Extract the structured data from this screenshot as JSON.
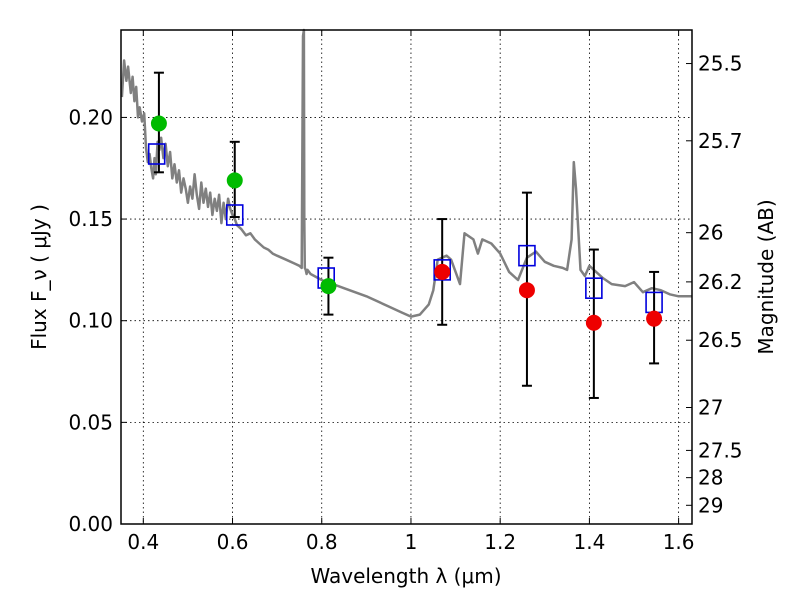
{
  "chart_data": {
    "type": "scatter",
    "xlabel": "Wavelength  λ (μm)",
    "ylabel": "Flux  F_ν  ( μJy )",
    "ylabel_right": "Magnitude (AB)",
    "xlim": [
      0.35,
      1.63
    ],
    "ylim": [
      0.0,
      0.243
    ],
    "grid": true,
    "x_ticks": [
      0.4,
      0.6,
      0.8,
      1.0,
      1.2,
      1.4,
      1.6
    ],
    "x_tick_labels": [
      "0.4",
      "0.6",
      "0.8",
      "1",
      "1.2",
      "1.4",
      "1.6"
    ],
    "y_ticks": [
      0.0,
      0.05,
      0.1,
      0.15,
      0.2
    ],
    "y_tick_labels": [
      "0.00",
      "0.05",
      "0.10",
      "0.15",
      "0.20"
    ],
    "right_ticks": [
      {
        "label": "25.5",
        "flux": 0.2265
      },
      {
        "label": "25.7",
        "flux": 0.1885
      },
      {
        "label": "26",
        "flux": 0.1433
      },
      {
        "label": "26.2",
        "flux": 0.1191
      },
      {
        "label": "26.5",
        "flux": 0.0904
      },
      {
        "label": "27",
        "flux": 0.0573
      },
      {
        "label": "27.5",
        "flux": 0.0362
      },
      {
        "label": "28",
        "flux": 0.0228
      },
      {
        "label": "29",
        "flux": 0.0092
      }
    ],
    "series": [
      {
        "kind": "model-spectrum",
        "color": "#808080",
        "x": [
          0.352,
          0.357,
          0.362,
          0.366,
          0.372,
          0.376,
          0.38,
          0.384,
          0.388,
          0.392,
          0.397,
          0.402,
          0.406,
          0.41,
          0.414,
          0.418,
          0.422,
          0.425,
          0.428,
          0.432,
          0.436,
          0.44,
          0.445,
          0.45,
          0.455,
          0.46,
          0.465,
          0.47,
          0.475,
          0.48,
          0.485,
          0.49,
          0.495,
          0.5,
          0.505,
          0.51,
          0.515,
          0.52,
          0.525,
          0.53,
          0.535,
          0.54,
          0.545,
          0.55,
          0.555,
          0.56,
          0.565,
          0.57,
          0.575,
          0.58,
          0.585,
          0.59,
          0.595,
          0.6,
          0.605,
          0.61,
          0.62,
          0.63,
          0.64,
          0.65,
          0.66,
          0.67,
          0.68,
          0.69,
          0.7,
          0.72,
          0.74,
          0.75,
          0.755,
          0.758,
          0.76,
          0.761,
          0.762,
          0.764,
          0.766,
          0.768,
          0.775,
          0.8,
          0.85,
          0.9,
          0.95,
          0.98,
          1.0,
          1.02,
          1.04,
          1.05,
          1.06,
          1.08,
          1.09,
          1.1,
          1.11,
          1.12,
          1.14,
          1.15,
          1.16,
          1.18,
          1.2,
          1.22,
          1.24,
          1.26,
          1.28,
          1.3,
          1.32,
          1.34,
          1.35,
          1.36,
          1.365,
          1.37,
          1.38,
          1.39,
          1.4,
          1.43,
          1.45,
          1.48,
          1.5,
          1.52,
          1.54,
          1.56,
          1.58,
          1.6,
          1.63
        ],
        "y": [
          0.21,
          0.228,
          0.218,
          0.225,
          0.212,
          0.22,
          0.208,
          0.215,
          0.2,
          0.205,
          0.198,
          0.202,
          0.185,
          0.178,
          0.182,
          0.175,
          0.17,
          0.18,
          0.172,
          0.188,
          0.184,
          0.19,
          0.18,
          0.187,
          0.176,
          0.183,
          0.17,
          0.177,
          0.168,
          0.174,
          0.163,
          0.17,
          0.165,
          0.158,
          0.166,
          0.16,
          0.172,
          0.162,
          0.155,
          0.168,
          0.158,
          0.165,
          0.156,
          0.163,
          0.152,
          0.16,
          0.154,
          0.162,
          0.148,
          0.158,
          0.15,
          0.16,
          0.155,
          0.152,
          0.15,
          0.147,
          0.145,
          0.142,
          0.143,
          0.14,
          0.138,
          0.136,
          0.135,
          0.133,
          0.132,
          0.13,
          0.128,
          0.127,
          0.126,
          0.24,
          0.25,
          0.15,
          0.126,
          0.125,
          0.123,
          0.125,
          0.123,
          0.12,
          0.116,
          0.112,
          0.107,
          0.104,
          0.102,
          0.103,
          0.108,
          0.115,
          0.13,
          0.132,
          0.13,
          0.124,
          0.118,
          0.143,
          0.14,
          0.133,
          0.14,
          0.138,
          0.133,
          0.124,
          0.12,
          0.131,
          0.134,
          0.129,
          0.127,
          0.126,
          0.125,
          0.14,
          0.178,
          0.165,
          0.125,
          0.122,
          0.127,
          0.121,
          0.118,
          0.117,
          0.119,
          0.114,
          0.116,
          0.115,
          0.113,
          0.112,
          0.112
        ]
      },
      {
        "kind": "model-bandpass-flux",
        "color": "#0000dd",
        "marker": "open-square",
        "x": [
          0.43,
          0.605,
          0.81,
          1.07,
          1.26,
          1.41,
          1.545
        ],
        "y": [
          0.182,
          0.152,
          0.121,
          0.125,
          0.132,
          0.116,
          0.109
        ]
      },
      {
        "kind": "observed-green",
        "color": "#00bb00",
        "marker": "filled-circle",
        "x": [
          0.435,
          0.605,
          0.815
        ],
        "y": [
          0.197,
          0.169,
          0.117
        ],
        "err_low": [
          0.173,
          0.151,
          0.103
        ],
        "err_high": [
          0.222,
          0.188,
          0.131
        ]
      },
      {
        "kind": "observed-red",
        "color": "#ee0000",
        "marker": "filled-circle",
        "x": [
          1.07,
          1.26,
          1.41,
          1.545
        ],
        "y": [
          0.124,
          0.115,
          0.099,
          0.101
        ],
        "err_low": [
          0.098,
          0.068,
          0.062,
          0.079
        ],
        "err_high": [
          0.15,
          0.163,
          0.135,
          0.124
        ]
      }
    ]
  }
}
